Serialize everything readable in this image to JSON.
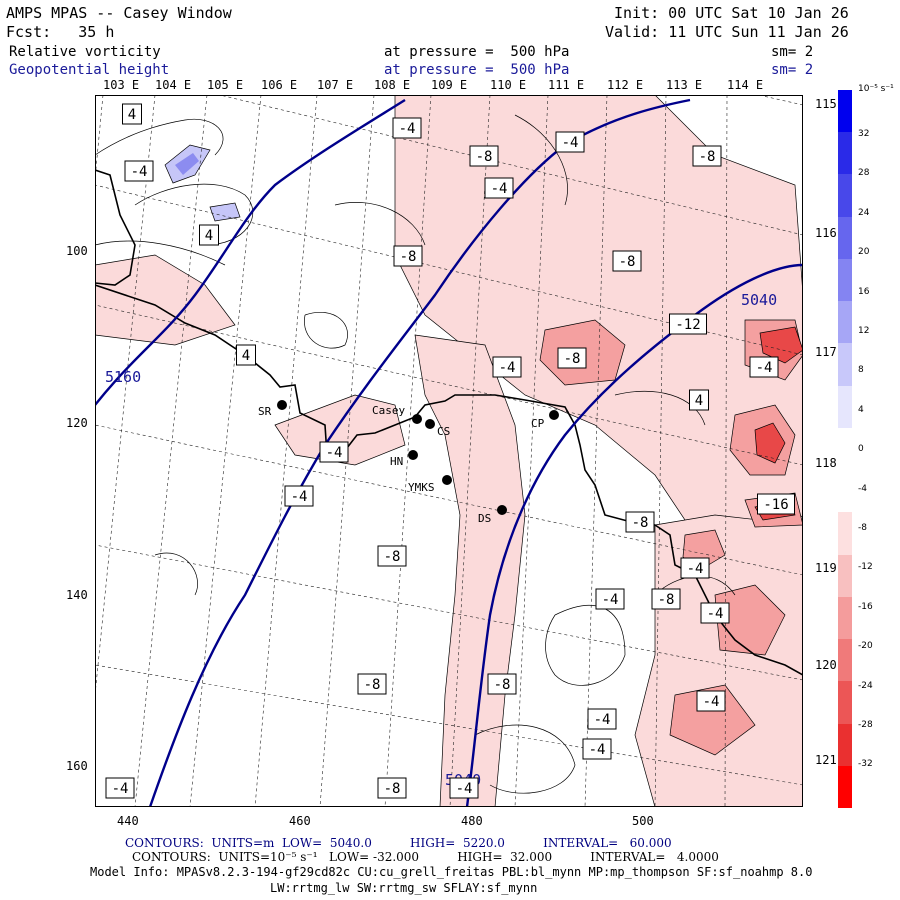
{
  "header": {
    "title": "AMPS MPAS -- Casey Window",
    "init": "Init: 00 UTC Sat 10 Jan 26",
    "forecast": "Fcst:   35 h",
    "valid": "Valid: 11 UTC Sun 11 Jan 26",
    "field1_name": "Relative vorticity",
    "field1_level": "at pressure =  500 hPa",
    "field1_smooth": "sm= 2",
    "field2_name": "Geopotential height",
    "field2_level": "at pressure =  500 hPa",
    "field2_smooth": "sm= 2"
  },
  "longitude_labels_top": [
    "103 E",
    "104 E",
    "105 E",
    "106 E",
    "107 E",
    "108 E",
    "109 E",
    "110 E",
    "111 E",
    "112 E",
    "113 E",
    "114 E"
  ],
  "longitude_labels_right": [
    "115 E",
    "116 E",
    "117 E",
    "118 E",
    "119 E",
    "120 E",
    "121 E"
  ],
  "x_axis_labels": [
    "440",
    "460",
    "480",
    "500"
  ],
  "y_axis_labels": [
    "100",
    "120",
    "140",
    "160"
  ],
  "stations": [
    "SR",
    "Casey",
    "CS",
    "HN",
    "YMKS",
    "CP",
    "DS"
  ],
  "height_contour_labels": [
    "5160",
    "5040",
    "5040"
  ],
  "vorticity_labels": [
    "4",
    "-4",
    "4",
    "-4",
    "-8",
    "-4",
    "-4",
    "-8",
    "-8",
    "-8",
    "-12",
    "4",
    "-8",
    "-4",
    "-4",
    "4",
    "-4",
    "-4",
    "-8",
    "-16",
    "-8",
    "-4",
    "-4",
    "-8",
    "-4",
    "-4",
    "-8",
    "-8",
    "-4",
    "-4",
    "-4",
    "-4",
    "-8"
  ],
  "colorbar": {
    "units": "10⁻⁵ s⁻¹",
    "labels": [
      "32",
      "28",
      "24",
      "20",
      "16",
      "12",
      "8",
      "4",
      "0",
      "-4",
      "-8",
      "-12",
      "-16",
      "-20",
      "-24",
      "-28",
      "-32"
    ],
    "colors": [
      "#0000ee",
      "#2a2ae8",
      "#4848ea",
      "#6666ee",
      "#8484f2",
      "#a6a6f6",
      "#c8c8fa",
      "#e6e6fd",
      "#ffffff",
      "#ffffff",
      "#fde0e0",
      "#f8c0c0",
      "#f49c9c",
      "#f07a7a",
      "#ec5656",
      "#ea3030",
      "#ff0000"
    ]
  },
  "footer": {
    "line1": "CONTOURS:  UNITS=m  LOW=  5040.0          HIGH=  5220.0          INTERVAL=   60.000",
    "line2": "CONTOURS:  UNITS=10⁻⁵ s⁻¹   LOW= -32.000          HIGH=  32.000          INTERVAL=   4.0000",
    "line3": "Model Info: MPASv8.2.3-194-gf29cd82c CU:cu_grell_freitas PBL:bl_mynn MP:mp_thompson SF:sf_noahmp 8.0",
    "line4": "LW:rrtmg_lw SW:rrtmg_sw SFLAY:sf_mynn"
  }
}
